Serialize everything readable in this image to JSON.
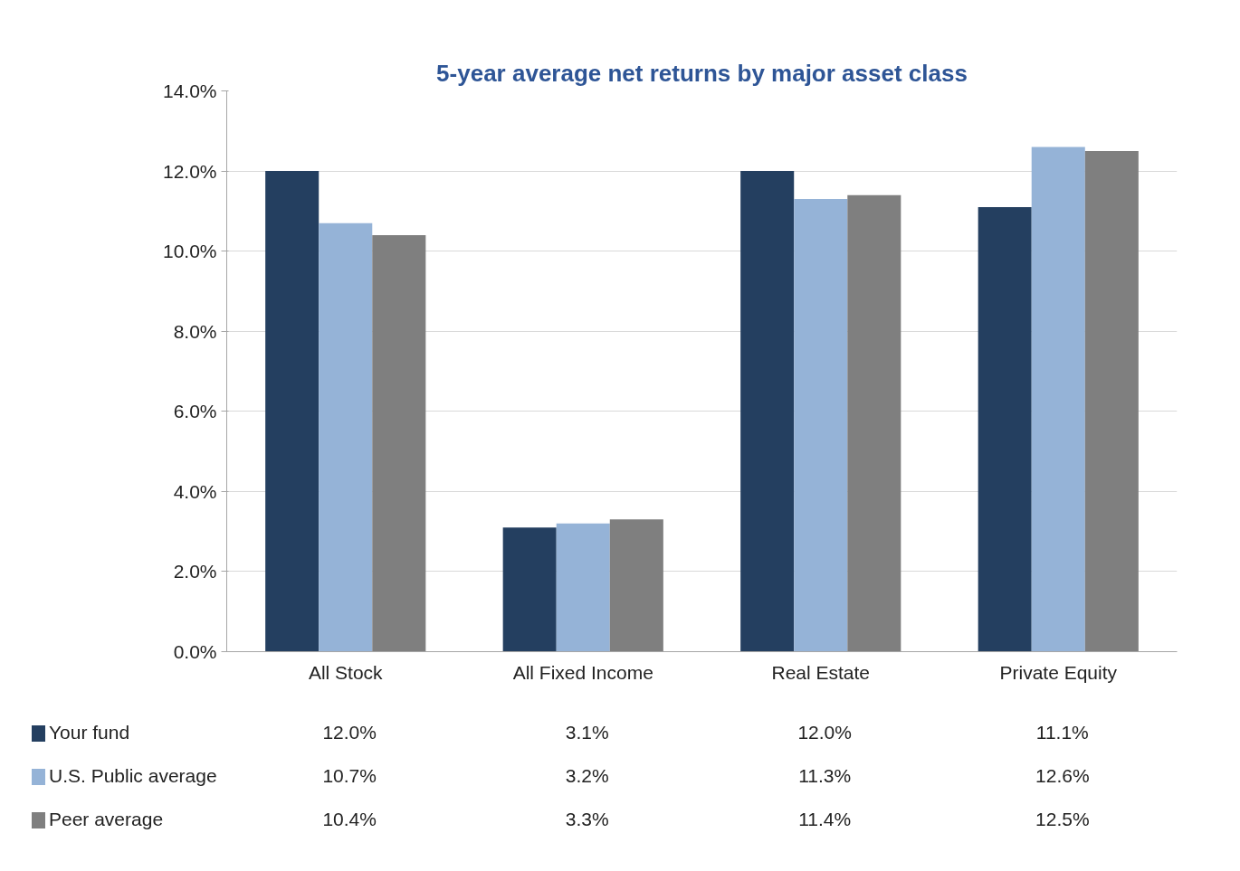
{
  "chart_data": {
    "type": "bar",
    "title": "5-year average net returns by major asset class",
    "categories": [
      "All Stock",
      "All Fixed Income",
      "Real Estate",
      "Private Equity"
    ],
    "series": [
      {
        "name": "Your fund",
        "color": "#243f60",
        "values": [
          12.0,
          3.1,
          12.0,
          11.1
        ],
        "value_labels": [
          "12.0%",
          "3.1%",
          "12.0%",
          "11.1%"
        ]
      },
      {
        "name": "U.S. Public average",
        "color": "#95b3d7",
        "values": [
          10.7,
          3.2,
          11.3,
          12.6
        ],
        "value_labels": [
          "10.7%",
          "3.2%",
          "11.3%",
          "12.6%"
        ]
      },
      {
        "name": "Peer average",
        "color": "#7f7f7f",
        "values": [
          10.4,
          3.3,
          11.4,
          12.5
        ],
        "value_labels": [
          "10.4%",
          "3.3%",
          "11.4%",
          "12.5%"
        ]
      }
    ],
    "ylim": [
      0,
      14
    ],
    "yticks": [
      {
        "value": 0,
        "label": "0.0%"
      },
      {
        "value": 2,
        "label": "2.0%"
      },
      {
        "value": 4,
        "label": "4.0%"
      },
      {
        "value": 6,
        "label": "6.0%"
      },
      {
        "value": 8,
        "label": "8.0%"
      },
      {
        "value": 10,
        "label": "10.0%"
      },
      {
        "value": 12,
        "label": "12.0%"
      },
      {
        "value": 14,
        "label": "14.0%"
      }
    ],
    "grid": "y",
    "legend": "bottom left"
  }
}
